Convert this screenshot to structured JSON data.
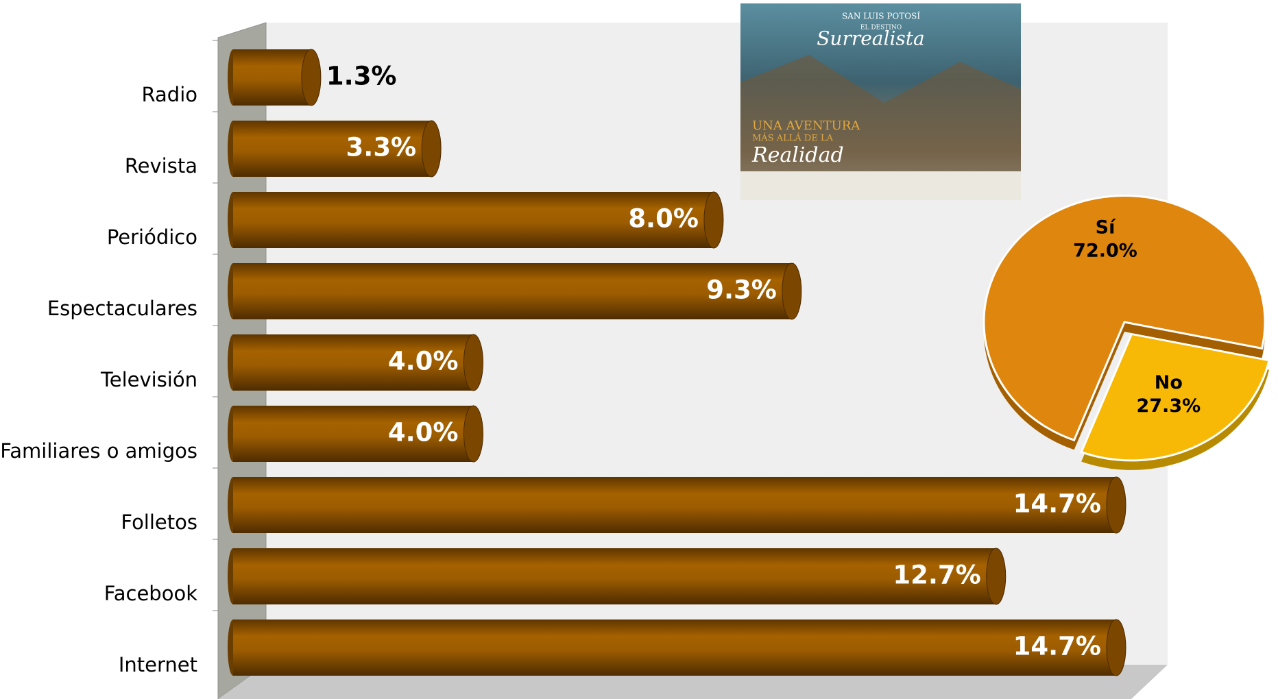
{
  "chart_data": [
    {
      "type": "cylbar",
      "categories": [
        "Radio",
        "Revista",
        "Periódico",
        "Espectaculares",
        "Televisión",
        "Familiares o amigos",
        "Folletos",
        "Facebook",
        "Internet"
      ],
      "values": [
        1.3,
        3.3,
        8.0,
        9.3,
        4.0,
        4.0,
        14.7,
        12.7,
        14.7
      ],
      "value_labels": [
        "1.3%",
        "3.3%",
        "8.0%",
        "9.3%",
        "4.0%",
        "4.0%",
        "14.7%",
        "12.7%",
        "14.7%"
      ],
      "color": "#9a5800"
    },
    {
      "type": "pie",
      "categories": [
        "Sí",
        "No"
      ],
      "values": [
        72.0,
        27.3
      ],
      "value_labels": [
        "72.0%",
        "27.3%"
      ],
      "colors": [
        "#de860e",
        "#f7b905"
      ]
    }
  ],
  "poster": {
    "region": "SAN LUIS POTOSÍ",
    "kicker": "EL DESTINO",
    "tagline": "Surrealista",
    "headline": "UNA AVENTURA",
    "subline": "MÁS ALLÁ DE LA",
    "script": "Realidad"
  }
}
